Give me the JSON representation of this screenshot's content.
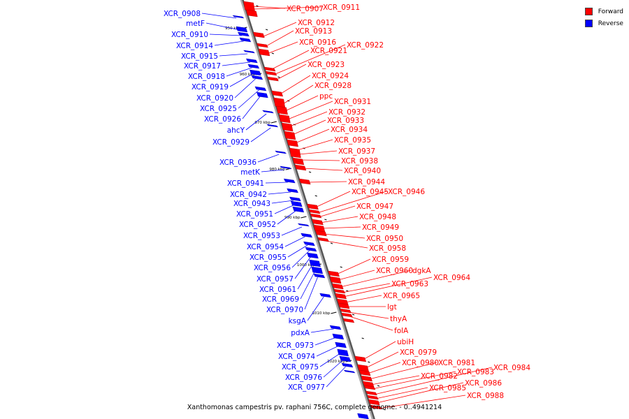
{
  "legend": [
    {
      "label": "Forward",
      "color": "#ff0000"
    },
    {
      "label": "Reverse",
      "color": "#0000ff"
    }
  ],
  "caption": "Xanthomonas campestris pv. raphani 756C, complete genome. - 0..4941214",
  "colors": {
    "forward": "#ff0000",
    "reverse": "#0000ff",
    "backbone": "#888888"
  },
  "ticks": [
    "950 kbp",
    "960 kbp",
    "970 kbp",
    "980 kbp",
    "990 kbp",
    "1000 kbp",
    "1010 kbp",
    "1020 kbp"
  ],
  "forward_genes": [
    "XCR_0907",
    "XCR_0911",
    "XCR_0912",
    "XCR_0913",
    "XCR_0916",
    "XCR_0921",
    "XCR_0922",
    "XCR_0923",
    "XCR_0924",
    "XCR_0928",
    "ppc",
    "XCR_0931",
    "XCR_0932",
    "XCR_0933",
    "XCR_0934",
    "XCR_0935",
    "XCR_0937",
    "XCR_0938",
    "XCR_0940",
    "XCR_0944",
    "XCR_0945",
    "XCR_0946",
    "XCR_0947",
    "XCR_0948",
    "XCR_0949",
    "XCR_0950",
    "XCR_0958",
    "XCR_0959",
    "XCR_0960",
    "dgkA",
    "XCR_0963",
    "XCR_0964",
    "XCR_0965",
    "lgt",
    "thyA",
    "folA",
    "ubiH",
    "XCR_0979",
    "XCR_0980",
    "XCR_0981",
    "XCR_0982",
    "XCR_0983",
    "XCR_0984",
    "XCR_0985",
    "XCR_0986",
    "XCR_0988"
  ],
  "reverse_genes": [
    "XCR_0908",
    "metF",
    "XCR_0910",
    "XCR_0914",
    "XCR_0915",
    "XCR_0917",
    "XCR_0918",
    "XCR_0919",
    "XCR_0920",
    "XCR_0925",
    "XCR_0926",
    "ahcY",
    "XCR_0929",
    "XCR_0936",
    "metK",
    "XCR_0941",
    "XCR_0942",
    "XCR_0943",
    "XCR_0951",
    "XCR_0952",
    "XCR_0953",
    "XCR_0954",
    "XCR_0955",
    "XCR_0956",
    "XCR_0957",
    "XCR_0961",
    "XCR_0969",
    "XCR_0970",
    "ksgA",
    "pdxA",
    "XCR_0973",
    "XCR_0974",
    "XCR_0975",
    "XCR_0976",
    "XCR_0977"
  ]
}
